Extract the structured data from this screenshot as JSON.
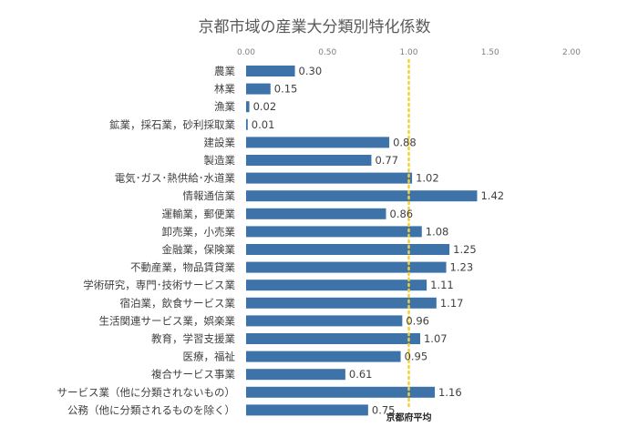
{
  "chart_data": {
    "type": "bar",
    "orientation": "horizontal",
    "title": "京都市域の産業大分類別特化係数",
    "xlabel": "",
    "ylabel": "",
    "xlim": [
      0,
      2
    ],
    "xticks": [
      "0.00",
      "0.50",
      "1.00",
      "1.50",
      "2.00"
    ],
    "xtick_values": [
      0,
      0.5,
      1,
      1.5,
      2
    ],
    "axis_position": "top",
    "grid": false,
    "bar_color": "#3E73A9",
    "reference_line": {
      "value": 1.0,
      "label": "京都府平均",
      "color": "#F5D033",
      "style": "dotted"
    },
    "categories": [
      "農業",
      "林業",
      "漁業",
      "鉱業，採石業，砂利採取業",
      "建設業",
      "製造業",
      "電気･ガス･熱供給･水道業",
      "情報通信業",
      "運輸業，郵便業",
      "卸売業，小売業",
      "金融業，保険業",
      "不動産業，物品賃貸業",
      "学術研究，専門･技術サービス業",
      "宿泊業，飲食サービス業",
      "生活関連サービス業，娯楽業",
      "教育，学習支援業",
      "医療，福祉",
      "複合サービス事業",
      "サービス業（他に分類されないもの）",
      "公務（他に分類されるものを除く）"
    ],
    "values": [
      0.3,
      0.15,
      0.02,
      0.01,
      0.88,
      0.77,
      1.02,
      1.42,
      0.86,
      1.08,
      1.25,
      1.23,
      1.11,
      1.17,
      0.96,
      1.07,
      0.95,
      0.61,
      1.16,
      0.75
    ],
    "value_labels": [
      "0.30",
      "0.15",
      "0.02",
      "0.01",
      "0.88",
      "0.77",
      "1.02",
      "1.42",
      "0.86",
      "1.08",
      "1.25",
      "1.23",
      "1.11",
      "1.17",
      "0.96",
      "1.07",
      "0.95",
      "0.61",
      "1.16",
      "0.75"
    ]
  }
}
